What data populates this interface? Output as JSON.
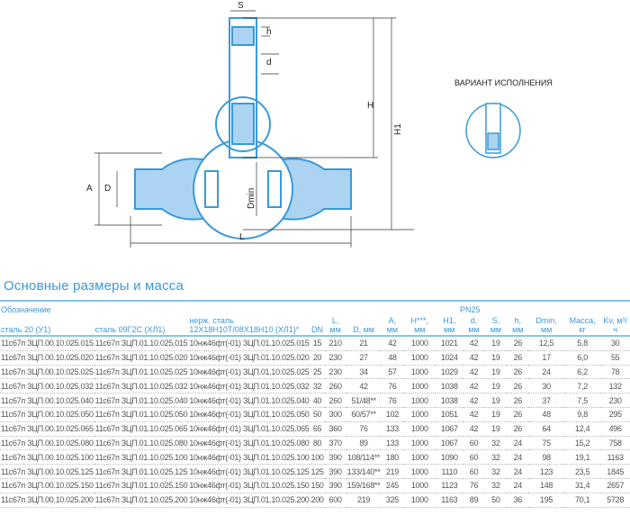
{
  "drawing": {
    "labels": {
      "S": "S",
      "h": "h",
      "d": "d",
      "H": "H",
      "H1": "H1",
      "A": "A",
      "D": "D",
      "Dmin": "Dmin",
      "L": "L"
    },
    "variant_title": "ВАРИАНТ ИСПОЛНЕНИЯ",
    "line_color": "#3a9ad9",
    "fill_color": "#aad4f2"
  },
  "section_title": "Основные размеры и масса",
  "table": {
    "group_designation": "Обозначение",
    "group_pn": "PN25",
    "headers": [
      "сталь 20 (У1)",
      "сталь 09Г2С (ХЛ1)",
      "нерж. сталь 12Х18Н10Т/08Х18Н10 (ХЛ1)*",
      "DN",
      "L, мм",
      "D, мм",
      "A, мм",
      "H***, мм",
      "H1, мм",
      "d, мм",
      "S, мм",
      "h, мм",
      "Dmin, мм",
      "Масса, кг",
      "Kv, м³/ч"
    ],
    "rows": [
      [
        "11с67п ЗЦП.00.10.025.015",
        "11с67п ЗЦП.01.10.025.015",
        "10нж46фт(-01) ЗЦП.01.10.025.015",
        "15",
        "210",
        "21",
        "42",
        "1000",
        "1021",
        "42",
        "19",
        "26",
        "12,5",
        "5,8",
        "30"
      ],
      [
        "11с67п ЗЦП.00.10.025.020",
        "11с67п ЗЦП.01.10.025.020",
        "10нж46фт(-01) ЗЦП.01.10.025.020",
        "20",
        "230",
        "27",
        "48",
        "1000",
        "1024",
        "42",
        "19",
        "26",
        "17",
        "6,0",
        "55"
      ],
      [
        "11с67п ЗЦП.00.10.025.025",
        "11с67п ЗЦП.01.10.025.025",
        "10нж46фт(-01) ЗЦП.01.10.025.025",
        "25",
        "230",
        "34",
        "57",
        "1000",
        "1029",
        "42",
        "19",
        "26",
        "24",
        "6,2",
        "78"
      ],
      [
        "11с67п ЗЦП.00.10.025.032",
        "11с67п ЗЦП.01.10.025.032",
        "10нж46фт(-01) ЗЦП.01.10.025.032",
        "32",
        "260",
        "42",
        "76",
        "1000",
        "1038",
        "42",
        "19",
        "26",
        "30",
        "7,2",
        "132"
      ],
      [
        "11с67п ЗЦП.00.10.025.040",
        "11с67п ЗЦП.01.10.025.040",
        "10нж46фт(-01) ЗЦП.01.10.025.040",
        "40",
        "260",
        "51/48**",
        "76",
        "1000",
        "1038",
        "42",
        "19",
        "26",
        "37",
        "7,5",
        "230"
      ],
      [
        "11с67п ЗЦП.00.10.025.050",
        "11с67п ЗЦП.01.10.025.050",
        "10нж46фт(-01) ЗЦП.01.10.025.050",
        "50",
        "300",
        "60/57**",
        "102",
        "1000",
        "1051",
        "42",
        "19",
        "26",
        "48",
        "9,8",
        "295"
      ],
      [
        "11с67п ЗЦП.00.10.025.065",
        "11с67п ЗЦП.01.10.025.065",
        "10нж46фт(-01) ЗЦП.01.10.025.065",
        "65",
        "360",
        "76",
        "133",
        "1000",
        "1067",
        "42",
        "19",
        "26",
        "64",
        "12,4",
        "496"
      ],
      [
        "11с67п ЗЦП.00.10.025.080",
        "11с67п ЗЦП.01.10.025.080",
        "10нж46фт(-01) ЗЦП.01.10.025.080",
        "80",
        "370",
        "89",
        "133",
        "1000",
        "1067",
        "60",
        "32",
        "24",
        "75",
        "15,2",
        "758"
      ],
      [
        "11с67п ЗЦП.00.10.025.100",
        "11с67п ЗЦП.01.10.025.100",
        "10нж46фт(-01) ЗЦП.01.10.025.100",
        "100",
        "390",
        "108/114**",
        "180",
        "1000",
        "1090",
        "60",
        "32",
        "24",
        "98",
        "19,1",
        "1163"
      ],
      [
        "11с67п ЗЦП.00.10.025.125",
        "11с67п ЗЦП.01.10.025.125",
        "10нж46фт(-01) ЗЦП.01.10.025.125",
        "125",
        "390",
        "133/140**",
        "219",
        "1000",
        "1110",
        "60",
        "32",
        "24",
        "123",
        "23,5",
        "1845"
      ],
      [
        "11с67п ЗЦП.00.10.025.150",
        "11с67п ЗЦП.01.10.025.150",
        "10нж46фт(-01) ЗЦП.01.10.025.150",
        "150",
        "390",
        "159/168**",
        "245",
        "1000",
        "1123",
        "76",
        "32",
        "24",
        "148",
        "31,4",
        "2657"
      ],
      [
        "11с67п ЗЦП.00.10.025.200",
        "11с67п ЗЦП.01.10.025.200",
        "10нж46фт(-01) ЗЦП.01.10.025.200",
        "200",
        "600",
        "219",
        "325",
        "1000",
        "1163",
        "89",
        "50",
        "36",
        "195",
        "70,1",
        "5728"
      ]
    ]
  }
}
